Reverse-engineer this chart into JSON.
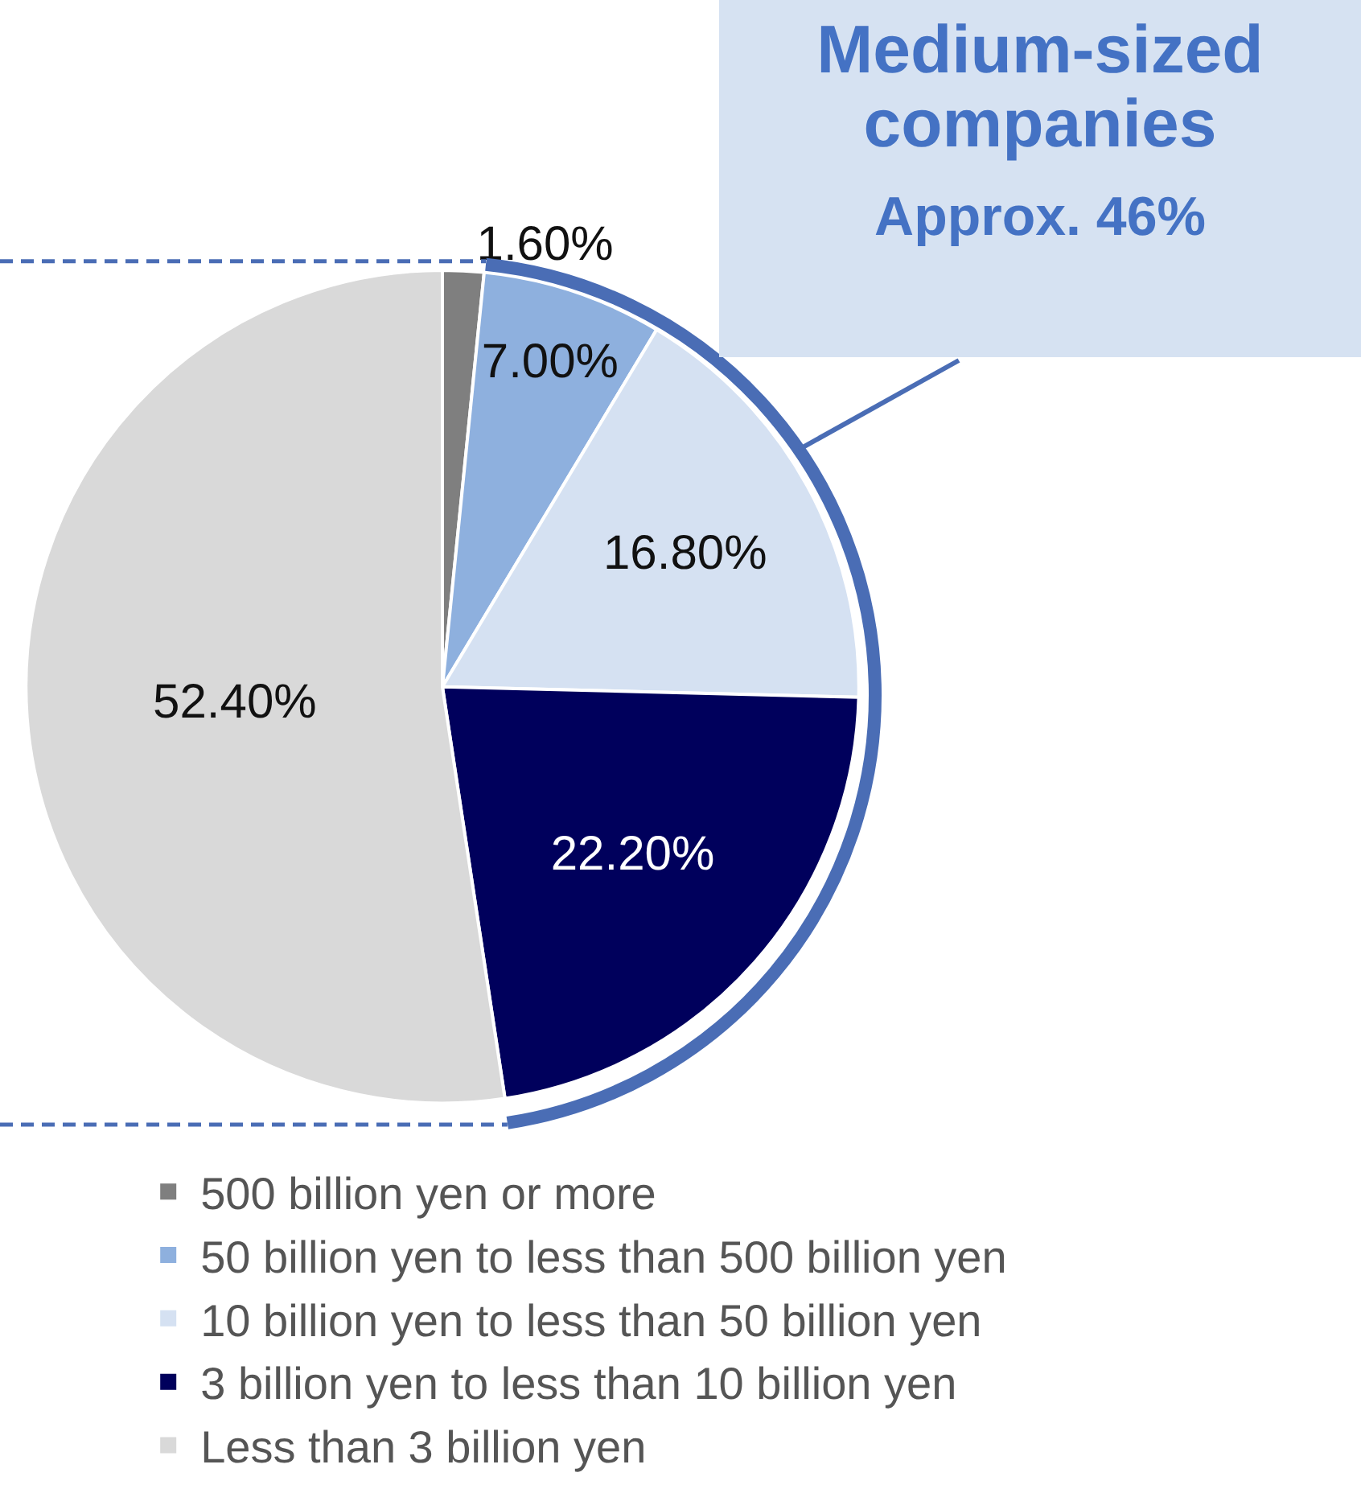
{
  "chart_data": {
    "type": "pie",
    "categories": [
      "500 billion yen or more",
      "50 billion yen to less than 500 billion yen",
      "10 billion yen to less than 50 billion yen",
      "3 billion yen to less than 10 billion yen",
      "Less than 3 billion yen"
    ],
    "values": [
      1.6,
      7.0,
      16.8,
      22.2,
      52.4
    ],
    "value_labels": [
      "1.60%",
      "7.00%",
      "16.80%",
      "22.20%",
      "52.40%"
    ],
    "colors": [
      "#7f7f7f",
      "#8eb0de",
      "#d5e1f2",
      "#00005c",
      "#d9d9d9"
    ],
    "annotations": [
      "Medium-sized companies",
      "Approx. 46%"
    ],
    "legend": "bottom"
  }
}
